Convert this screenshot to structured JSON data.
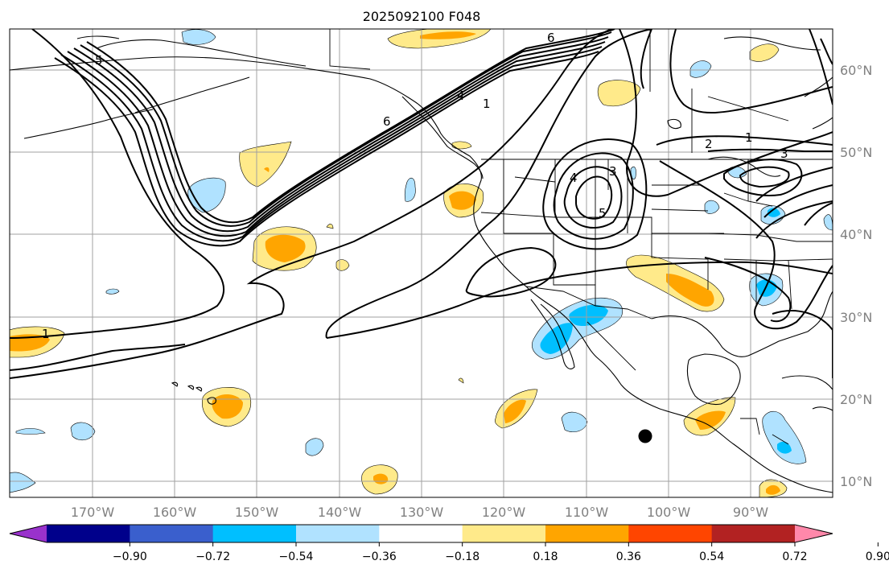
{
  "title": "2025092100 F048",
  "lon_labels": [
    "170°W",
    "160°W",
    "150°W",
    "140°W",
    "130°W",
    "120°W",
    "110°W",
    "100°W",
    "90°W"
  ],
  "lat_labels": [
    "60°N",
    "50°N",
    "40°N",
    "30°N",
    "20°N",
    "10°N"
  ],
  "colorbar": {
    "tick_labels": [
      "−0.90",
      "−0.72",
      "−0.54",
      "−0.36",
      "−0.18",
      "0.18",
      "0.36",
      "0.54",
      "0.72",
      "0.90"
    ],
    "colors": [
      "#9932cc",
      "#00008b",
      "#3a5fcd",
      "#00bfff",
      "#b0e2ff",
      "#ffffff",
      "#ffea8a",
      "#ffa500",
      "#ff4500",
      "#b22222",
      "#ff88aa"
    ]
  },
  "contour_labels": [
    "5",
    "6",
    "4",
    "1",
    "6",
    "4",
    "3",
    "5",
    "1",
    "2",
    "3",
    "1"
  ],
  "marker": "black-dot"
}
